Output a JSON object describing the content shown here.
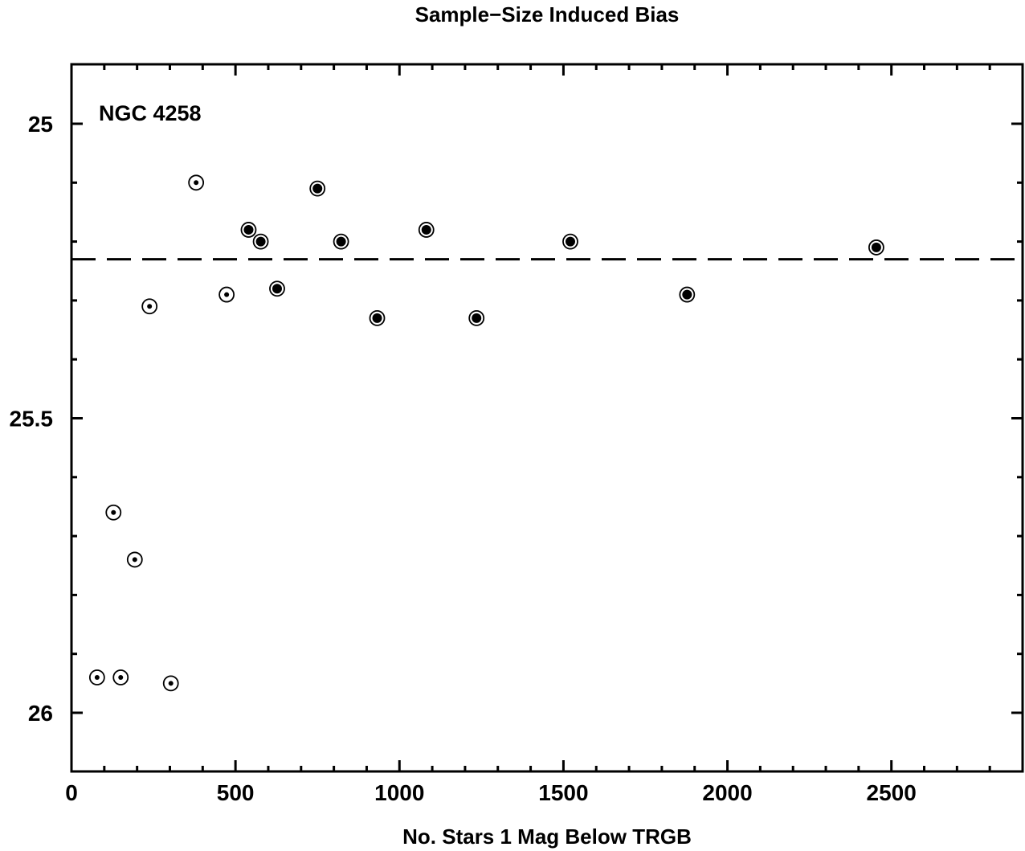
{
  "chart_data": {
    "type": "scatter",
    "title": "Sample−Size Induced Bias",
    "xlabel": "No. Stars 1 Mag Below TRGB",
    "ylabel": "",
    "annotation": "NGC 4258",
    "xlim": [
      0,
      2900
    ],
    "ylim": [
      26.1,
      24.9
    ],
    "y_inverted": true,
    "grid": false,
    "legend": "none",
    "x_ticks_major": [
      "0",
      "500",
      "1000",
      "1500",
      "2000",
      "2500"
    ],
    "y_ticks_major": [
      "25",
      "25.5",
      "26"
    ],
    "reference_line": {
      "style": "dashed",
      "y": 25.23
    },
    "series": [
      {
        "marker": "open-circle-with-small-dot",
        "x": [
          78,
          128,
          150,
          193,
          238,
          303,
          380,
          473
        ],
        "y": [
          25.94,
          25.66,
          25.94,
          25.74,
          25.31,
          25.95,
          25.1,
          25.29
        ]
      },
      {
        "marker": "open-circle-with-large-dot",
        "x": [
          540,
          577,
          627,
          750,
          822,
          932,
          1082,
          1235,
          1521,
          1877,
          2454
        ],
        "y": [
          25.18,
          25.2,
          25.28,
          25.11,
          25.2,
          25.33,
          25.18,
          25.33,
          25.2,
          25.29,
          25.21
        ]
      }
    ],
    "colors": {
      "foreground": "#000000",
      "background": "#ffffff"
    }
  }
}
